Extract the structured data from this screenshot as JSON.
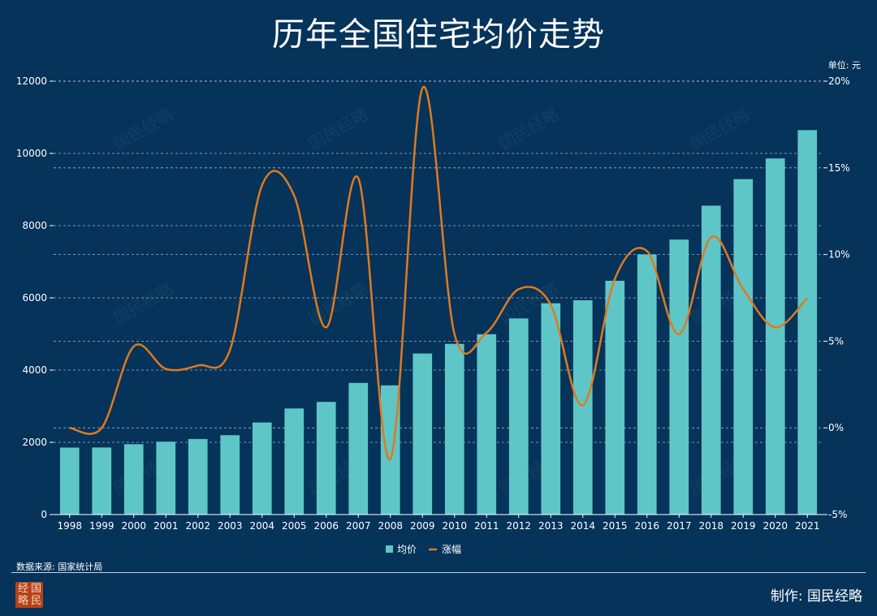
{
  "title": "历年全国住宅均价走势",
  "unit_label": "单位: 元",
  "source_label": "数据来源: 国家统计局",
  "credit_label": "制作: 国民经略",
  "stamp_chars": [
    "经",
    "国",
    "略",
    "民"
  ],
  "watermark_text": "国民经略",
  "colors": {
    "background": "#05335a",
    "bar": "#5fc6c8",
    "line": "#e07a1c",
    "grid": "#c8d6e4",
    "text": "#ffffff"
  },
  "chart_data": {
    "type": "bar",
    "title": "历年全国住宅均价走势",
    "categories": [
      "1998",
      "1999",
      "2000",
      "2001",
      "2002",
      "2003",
      "2004",
      "2005",
      "2006",
      "2007",
      "2008",
      "2009",
      "2010",
      "2011",
      "2012",
      "2013",
      "2014",
      "2015",
      "2016",
      "2017",
      "2018",
      "2019",
      "2020",
      "2021"
    ],
    "series": [
      {
        "name": "均价",
        "type": "bar",
        "axis": "left",
        "values": [
          1854,
          1857,
          1948,
          2017,
          2092,
          2197,
          2549,
          2937,
          3119,
          3645,
          3576,
          4459,
          4725,
          4993,
          5430,
          5850,
          5933,
          6473,
          7203,
          7614,
          8553,
          9287,
          9860,
          10644
        ]
      },
      {
        "name": "涨幅",
        "type": "line",
        "axis": "right",
        "unit": "%",
        "values": [
          0.0,
          0.0,
          4.7,
          3.4,
          3.6,
          4.5,
          14.0,
          13.4,
          5.8,
          14.4,
          -1.8,
          19.6,
          5.4,
          5.5,
          8.0,
          7.1,
          1.3,
          8.6,
          10.2,
          5.4,
          11.0,
          8.0,
          5.8,
          7.5
        ]
      }
    ],
    "y_left": {
      "min": 0,
      "max": 12000,
      "ticks": [
        0,
        2000,
        4000,
        6000,
        8000,
        10000,
        12000
      ]
    },
    "y_right": {
      "min": -5,
      "max": 20,
      "ticks": [
        -5,
        0,
        5,
        10,
        15,
        20
      ],
      "tick_labels": [
        "-5%",
        "0%",
        "5%",
        "10%",
        "15%",
        "20%"
      ]
    },
    "grid": true,
    "legend": {
      "placement": "bottom-center",
      "entries": [
        "均价",
        "涨幅"
      ]
    }
  }
}
